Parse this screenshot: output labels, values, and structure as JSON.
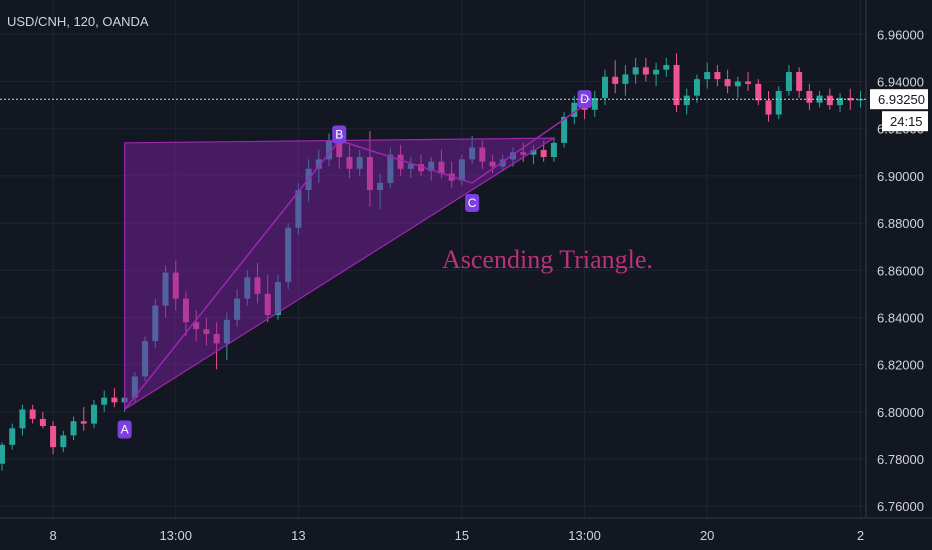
{
  "symbol_line": "USD/CNH, 120, OANDA",
  "colors": {
    "background": "#131722",
    "grid": "#1f2433",
    "up": "#26a69a",
    "down": "#ef5391",
    "pattern_fill": "#7b1fa2",
    "pattern_line": "#9c27b0",
    "label_bg": "#7e3fe0",
    "annotation": "#b9327a"
  },
  "current_price": {
    "value": "6.93250",
    "timer": "24:15"
  },
  "chart_data": {
    "type": "candlestick",
    "title": "",
    "ylim": [
      6.755,
      6.972
    ],
    "y_ticks": [
      "6.96000",
      "6.94000",
      "6.92000",
      "6.90000",
      "6.88000",
      "6.86000",
      "6.84000",
      "6.82000",
      "6.80000",
      "6.78000",
      "6.76000"
    ],
    "x_ticks": [
      {
        "label": "8",
        "index": 5
      },
      {
        "label": "13:00",
        "index": 17
      },
      {
        "label": "13",
        "index": 29
      },
      {
        "label": "15",
        "index": 45
      },
      {
        "label": "13:00",
        "index": 57
      },
      {
        "label": "20",
        "index": 69
      },
      {
        "label": "2",
        "index": 84
      }
    ],
    "annotation": "Ascending Triangle.",
    "points": [
      {
        "label": "A",
        "index": 12,
        "price": 6.801
      },
      {
        "label": "B",
        "index": 33,
        "price": 6.915
      },
      {
        "label": "C",
        "index": 46,
        "price": 6.897
      },
      {
        "label": "D",
        "index": 57,
        "price": 6.93
      }
    ],
    "triangle": [
      {
        "index": 12,
        "price": 6.914
      },
      {
        "index": 54,
        "price": 6.916
      },
      {
        "index": 12,
        "price": 6.801
      }
    ],
    "candles": [
      [
        6.778,
        6.787,
        6.775,
        6.786
      ],
      [
        6.786,
        6.795,
        6.784,
        6.793
      ],
      [
        6.793,
        6.803,
        6.79,
        6.801
      ],
      [
        6.801,
        6.803,
        6.795,
        6.797
      ],
      [
        6.797,
        6.8,
        6.793,
        6.794
      ],
      [
        6.794,
        6.796,
        6.782,
        6.785
      ],
      [
        6.785,
        6.792,
        6.783,
        6.79
      ],
      [
        6.79,
        6.798,
        6.788,
        6.796
      ],
      [
        6.796,
        6.802,
        6.792,
        6.795
      ],
      [
        6.795,
        6.805,
        6.793,
        6.803
      ],
      [
        6.803,
        6.809,
        6.8,
        6.806
      ],
      [
        6.806,
        6.81,
        6.802,
        6.804
      ],
      [
        6.804,
        6.808,
        6.8,
        6.806
      ],
      [
        6.806,
        6.817,
        6.804,
        6.815
      ],
      [
        6.815,
        6.832,
        6.813,
        6.83
      ],
      [
        6.83,
        6.848,
        6.827,
        6.845
      ],
      [
        6.845,
        6.862,
        6.84,
        6.859
      ],
      [
        6.859,
        6.864,
        6.843,
        6.848
      ],
      [
        6.848,
        6.851,
        6.832,
        6.838
      ],
      [
        6.838,
        6.843,
        6.83,
        6.835
      ],
      [
        6.835,
        6.84,
        6.828,
        6.833
      ],
      [
        6.833,
        6.838,
        6.818,
        6.829
      ],
      [
        6.829,
        6.842,
        6.822,
        6.839
      ],
      [
        6.839,
        6.852,
        6.836,
        6.848
      ],
      [
        6.848,
        6.86,
        6.845,
        6.857
      ],
      [
        6.857,
        6.863,
        6.846,
        6.85
      ],
      [
        6.85,
        6.858,
        6.838,
        6.841
      ],
      [
        6.841,
        6.858,
        6.839,
        6.855
      ],
      [
        6.855,
        6.88,
        6.852,
        6.878
      ],
      [
        6.878,
        6.897,
        6.875,
        6.894
      ],
      [
        6.894,
        6.907,
        6.889,
        6.903
      ],
      [
        6.903,
        6.911,
        6.897,
        6.907
      ],
      [
        6.907,
        6.918,
        6.904,
        6.915
      ],
      [
        6.915,
        6.918,
        6.903,
        6.908
      ],
      [
        6.908,
        6.913,
        6.899,
        6.903
      ],
      [
        6.903,
        6.911,
        6.9,
        6.908
      ],
      [
        6.908,
        6.919,
        6.887,
        6.894
      ],
      [
        6.894,
        6.901,
        6.886,
        6.897
      ],
      [
        6.897,
        6.912,
        6.895,
        6.909
      ],
      [
        6.909,
        6.913,
        6.9,
        6.903
      ],
      [
        6.903,
        6.908,
        6.899,
        6.905
      ],
      [
        6.905,
        6.909,
        6.9,
        6.902
      ],
      [
        6.902,
        6.908,
        6.898,
        6.906
      ],
      [
        6.906,
        6.911,
        6.899,
        6.901
      ],
      [
        6.901,
        6.906,
        6.895,
        6.898
      ],
      [
        6.898,
        6.909,
        6.896,
        6.907
      ],
      [
        6.907,
        6.917,
        6.905,
        6.912
      ],
      [
        6.912,
        6.915,
        6.903,
        6.906
      ],
      [
        6.906,
        6.909,
        6.901,
        6.904
      ],
      [
        6.904,
        6.909,
        6.902,
        6.907
      ],
      [
        6.907,
        6.912,
        6.904,
        6.91
      ],
      [
        6.91,
        6.914,
        6.906,
        6.909
      ],
      [
        6.909,
        6.913,
        6.905,
        6.911
      ],
      [
        6.911,
        6.915,
        6.906,
        6.908
      ],
      [
        6.908,
        6.916,
        6.906,
        6.914
      ],
      [
        6.914,
        6.927,
        6.912,
        6.925
      ],
      [
        6.925,
        6.934,
        6.922,
        6.931
      ],
      [
        6.931,
        6.936,
        6.924,
        6.928
      ],
      [
        6.928,
        6.936,
        6.925,
        6.933
      ],
      [
        6.933,
        6.945,
        6.93,
        6.942
      ],
      [
        6.942,
        6.949,
        6.935,
        6.939
      ],
      [
        6.939,
        6.947,
        6.934,
        6.943
      ],
      [
        6.943,
        6.95,
        6.939,
        6.946
      ],
      [
        6.946,
        6.95,
        6.94,
        6.943
      ],
      [
        6.943,
        6.948,
        6.938,
        6.945
      ],
      [
        6.945,
        6.95,
        6.942,
        6.947
      ],
      [
        6.947,
        6.952,
        6.927,
        6.93
      ],
      [
        6.93,
        6.937,
        6.926,
        6.934
      ],
      [
        6.934,
        6.943,
        6.931,
        6.941
      ],
      [
        6.941,
        6.948,
        6.937,
        6.944
      ],
      [
        6.944,
        6.947,
        6.938,
        6.941
      ],
      [
        6.941,
        6.945,
        6.935,
        6.938
      ],
      [
        6.938,
        6.942,
        6.933,
        6.94
      ],
      [
        6.94,
        6.944,
        6.936,
        6.939
      ],
      [
        6.939,
        6.941,
        6.93,
        6.932
      ],
      [
        6.932,
        6.936,
        6.923,
        6.926
      ],
      [
        6.926,
        6.938,
        6.924,
        6.936
      ],
      [
        6.936,
        6.947,
        6.934,
        6.944
      ],
      [
        6.944,
        6.946,
        6.933,
        6.936
      ],
      [
        6.936,
        6.939,
        6.928,
        6.931
      ],
      [
        6.931,
        6.936,
        6.929,
        6.934
      ],
      [
        6.934,
        6.937,
        6.928,
        6.93
      ],
      [
        6.93,
        6.935,
        6.927,
        6.933
      ],
      [
        6.933,
        6.937,
        6.928,
        6.932
      ],
      [
        6.932,
        6.936,
        6.929,
        6.9325
      ]
    ]
  }
}
